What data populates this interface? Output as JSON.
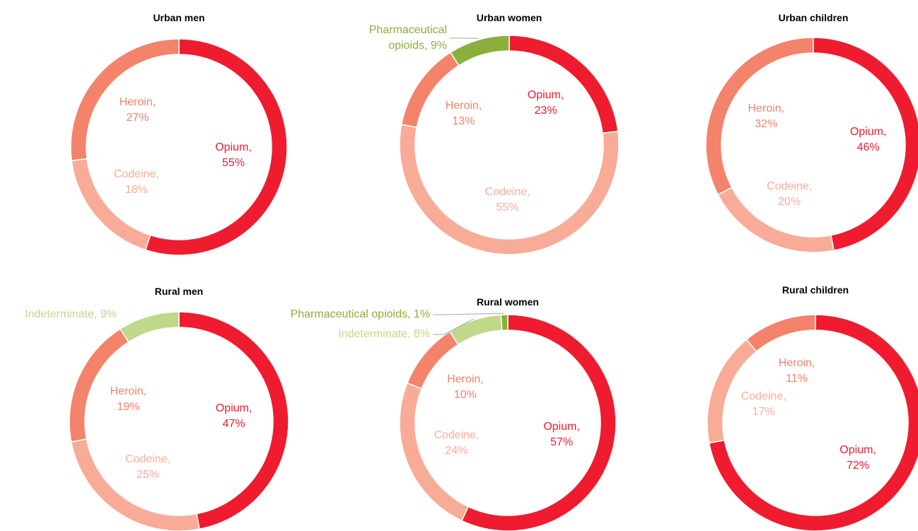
{
  "chart_data": [
    {
      "type": "donut",
      "title": "Urban men",
      "values": [
        55,
        18,
        27
      ],
      "value_labels": [
        "Opium, 55%",
        "Codeine, 18%",
        "Heroin, 27%"
      ],
      "colors": [
        "#ee1c2e",
        "#f8ac98",
        "#f3836b"
      ]
    },
    {
      "type": "donut",
      "title": "Urban women",
      "values": [
        23,
        55,
        13,
        9
      ],
      "value_labels": [
        "Opium, 23%",
        "Codeine, 55%",
        "Heroin, 13%",
        "Pharmaceutical opioids, 9%"
      ],
      "colors": [
        "#ee1c2e",
        "#f8ac98",
        "#f3836b",
        "#8aaf3c"
      ]
    },
    {
      "type": "donut",
      "title": "Urban children",
      "values": [
        46,
        20,
        32
      ],
      "value_labels": [
        "Opium, 46%",
        "Codeine, 20%",
        "Heroin, 32%"
      ],
      "colors": [
        "#ee1c2e",
        "#f8ac98",
        "#f3836b"
      ]
    },
    {
      "type": "donut",
      "title": "Rural men",
      "values": [
        47,
        25,
        19,
        9
      ],
      "value_labels": [
        "Opium, 47%",
        "Codeine, 25%",
        "Heroin, 19%",
        "Indeterminate, 9%"
      ],
      "colors": [
        "#ee1c2e",
        "#f8ac98",
        "#f3836b",
        "#c0d88a"
      ]
    },
    {
      "type": "donut",
      "title": "Rural women",
      "values": [
        57,
        24,
        10,
        8,
        1
      ],
      "value_labels": [
        "Opium, 57%",
        "Codeine, 24%",
        "Heroin, 10%",
        "Indeterminate, 8%",
        "Pharmaceutical opioids, 1%"
      ],
      "colors": [
        "#ee1c2e",
        "#f8ac98",
        "#f3836b",
        "#c0d88a",
        "#8aaf3c"
      ]
    },
    {
      "type": "donut",
      "title": "Rural children",
      "values": [
        72,
        17,
        11
      ],
      "value_labels": [
        "Opium, 72%",
        "Codeine, 17%",
        "Heroin, 11%"
      ],
      "colors": [
        "#ee1c2e",
        "#f8ac98",
        "#f3836b"
      ]
    }
  ]
}
